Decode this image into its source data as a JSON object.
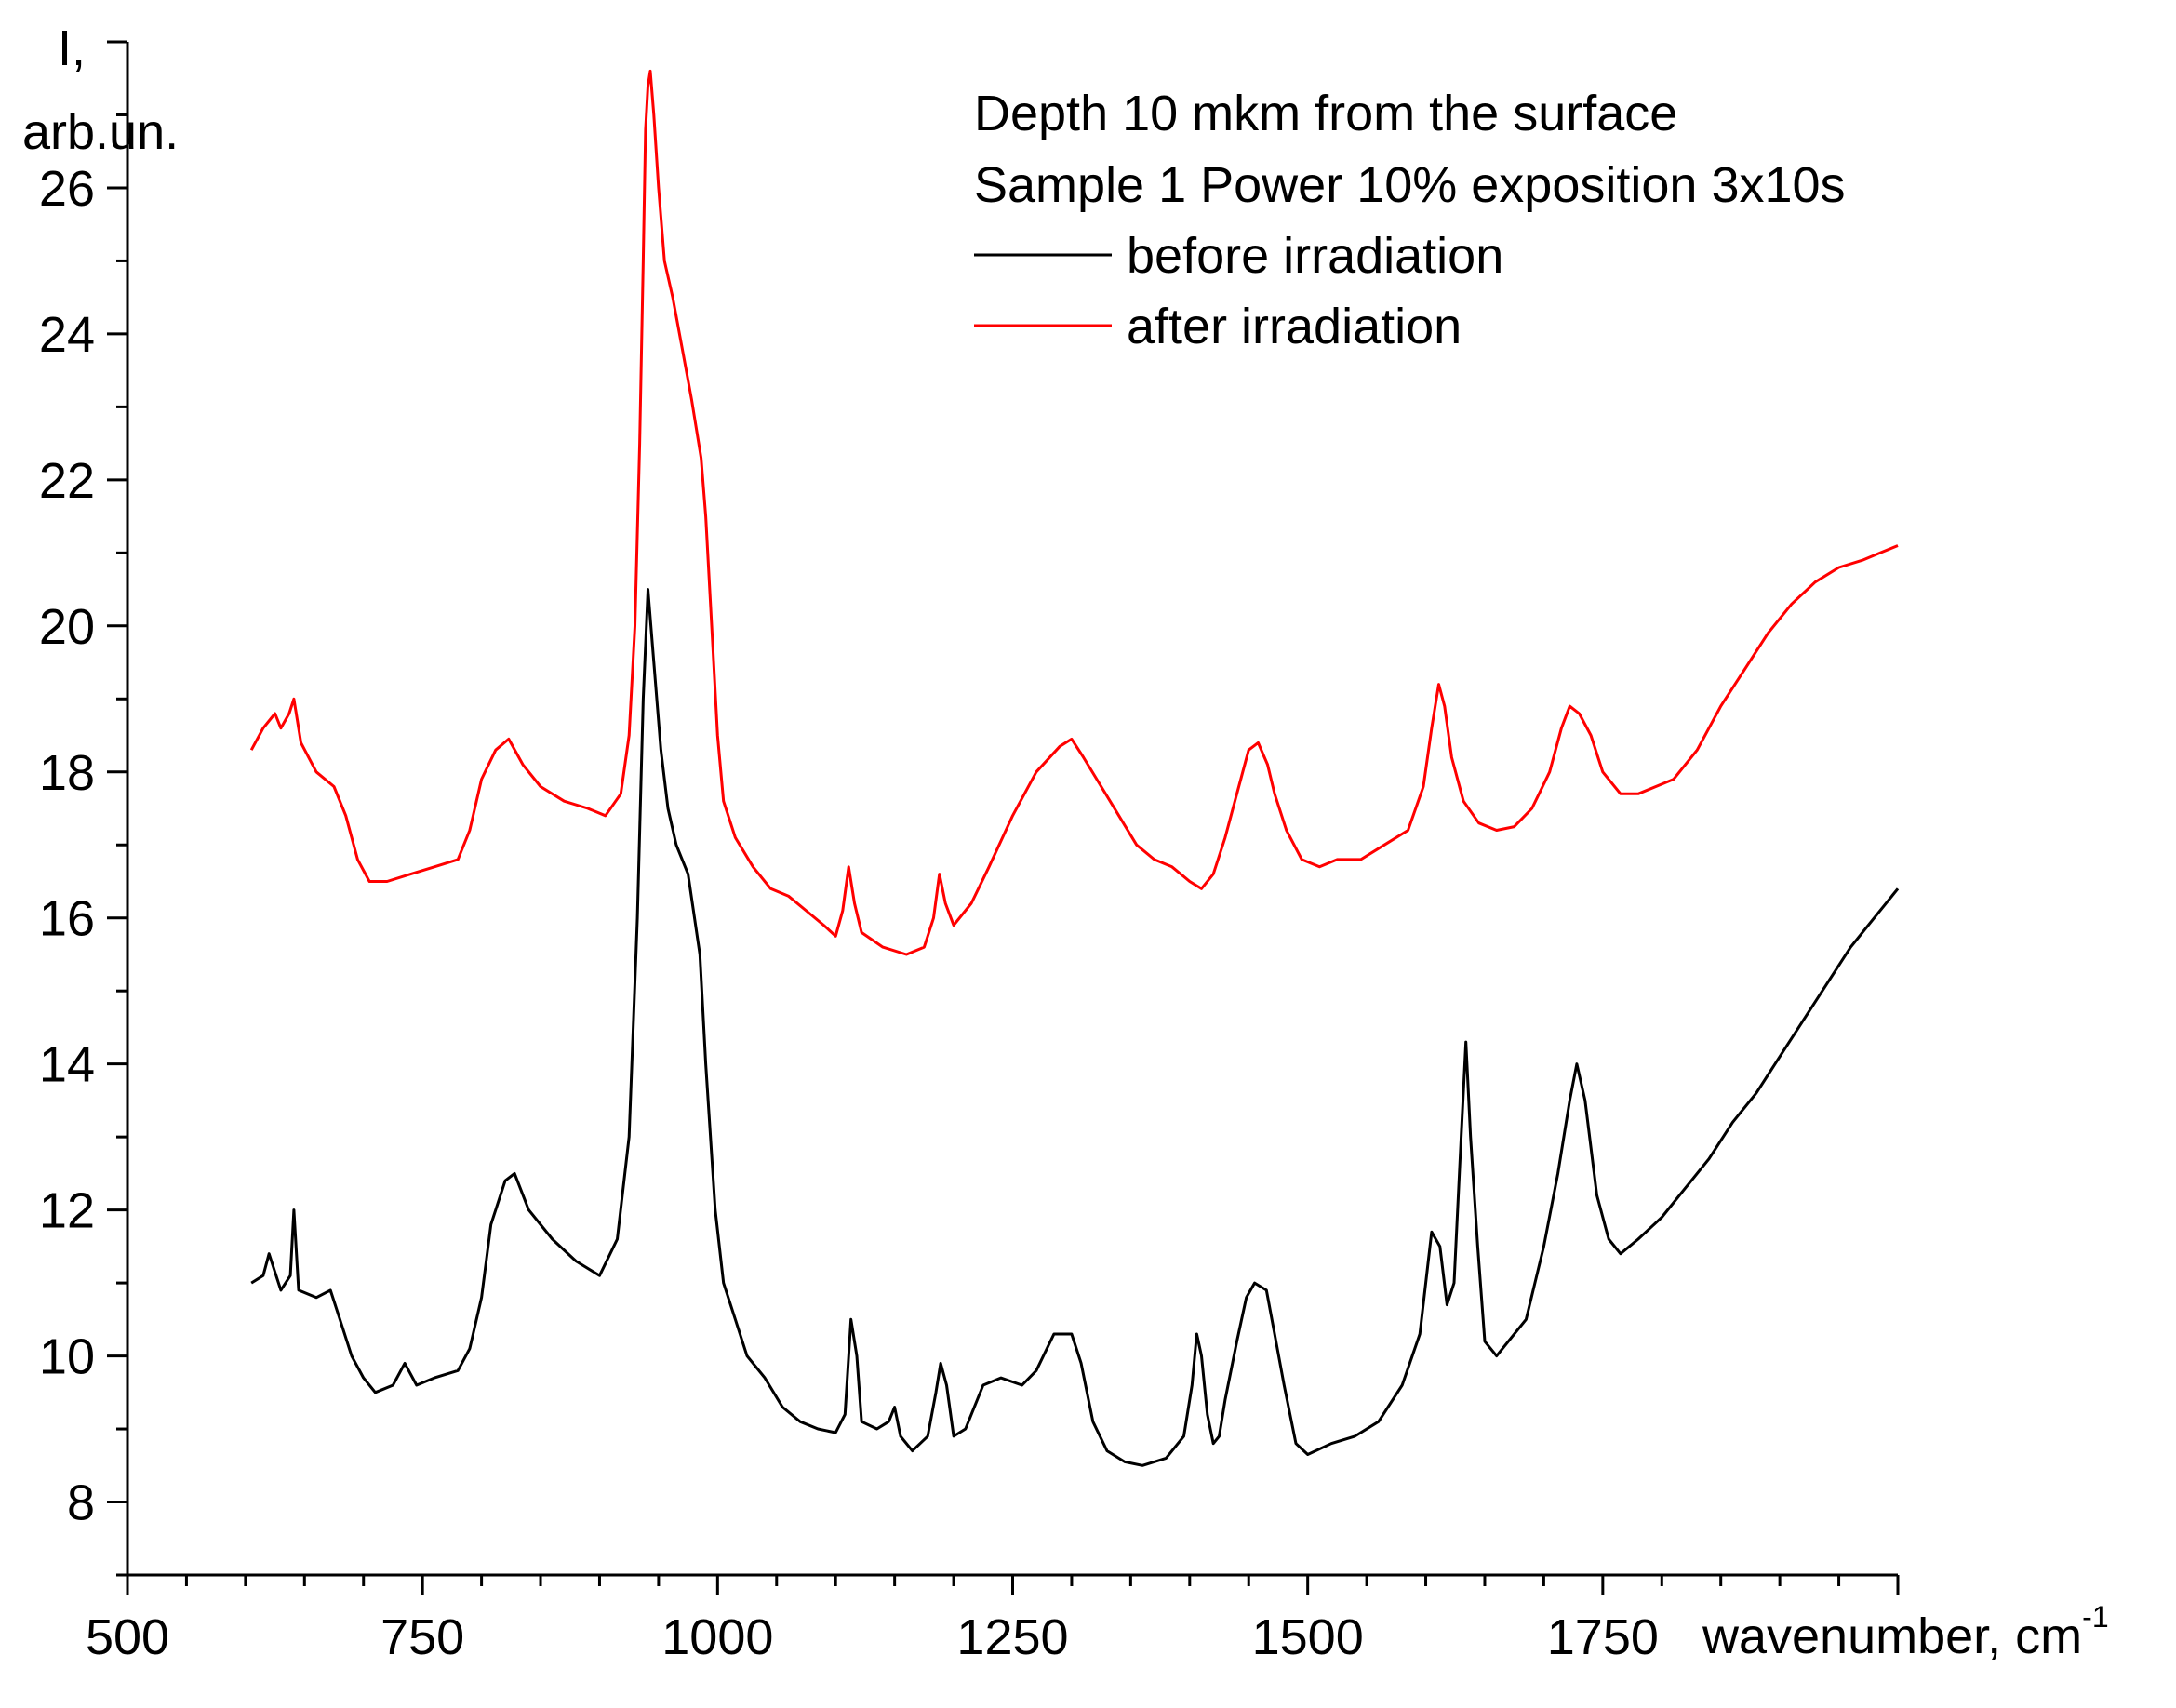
{
  "chart_data": {
    "type": "line",
    "title_lines": [
      "Depth 10 mkm from the surface",
      "Sample 1 Power 10% exposition 3x10s"
    ],
    "xlabel": "wavenumber, cm",
    "xlabel_superscript": "-1",
    "ylabel_lines": [
      "I,",
      "arb.un."
    ],
    "xlim": [
      500,
      2000
    ],
    "ylim": [
      7,
      28
    ],
    "xticks": [
      500,
      750,
      1000,
      1250,
      1500,
      1750
    ],
    "yticks": [
      8,
      10,
      12,
      14,
      16,
      18,
      20,
      22,
      24,
      26
    ],
    "colors": {
      "axis": "#000000",
      "before": "#000000",
      "after": "#ff0000"
    },
    "series": [
      {
        "name": "before irradiation",
        "color": "#000000",
        "points": [
          [
            605,
            11.0
          ],
          [
            615,
            11.1
          ],
          [
            620,
            11.4
          ],
          [
            630,
            10.9
          ],
          [
            638,
            11.1
          ],
          [
            641,
            12.0
          ],
          [
            645,
            10.9
          ],
          [
            660,
            10.8
          ],
          [
            672,
            10.9
          ],
          [
            680,
            10.5
          ],
          [
            690,
            10.0
          ],
          [
            700,
            9.7
          ],
          [
            710,
            9.5
          ],
          [
            725,
            9.6
          ],
          [
            735,
            9.9
          ],
          [
            745,
            9.6
          ],
          [
            760,
            9.7
          ],
          [
            780,
            9.8
          ],
          [
            790,
            10.1
          ],
          [
            800,
            10.8
          ],
          [
            808,
            11.8
          ],
          [
            820,
            12.4
          ],
          [
            828,
            12.5
          ],
          [
            840,
            12.0
          ],
          [
            860,
            11.6
          ],
          [
            880,
            11.3
          ],
          [
            900,
            11.1
          ],
          [
            915,
            11.6
          ],
          [
            925,
            13.0
          ],
          [
            932,
            16.0
          ],
          [
            937,
            19.0
          ],
          [
            941,
            20.5
          ],
          [
            946,
            19.5
          ],
          [
            952,
            18.3
          ],
          [
            958,
            17.5
          ],
          [
            965,
            17.0
          ],
          [
            975,
            16.6
          ],
          [
            985,
            15.5
          ],
          [
            990,
            14.0
          ],
          [
            998,
            12.0
          ],
          [
            1005,
            11.0
          ],
          [
            1015,
            10.5
          ],
          [
            1025,
            10.0
          ],
          [
            1040,
            9.7
          ],
          [
            1055,
            9.3
          ],
          [
            1070,
            9.1
          ],
          [
            1085,
            9.0
          ],
          [
            1100,
            8.95
          ],
          [
            1108,
            9.2
          ],
          [
            1113,
            10.5
          ],
          [
            1118,
            10.0
          ],
          [
            1122,
            9.1
          ],
          [
            1135,
            9.0
          ],
          [
            1145,
            9.1
          ],
          [
            1150,
            9.3
          ],
          [
            1155,
            8.9
          ],
          [
            1165,
            8.7
          ],
          [
            1178,
            8.9
          ],
          [
            1185,
            9.5
          ],
          [
            1189,
            9.9
          ],
          [
            1194,
            9.6
          ],
          [
            1200,
            8.9
          ],
          [
            1210,
            9.0
          ],
          [
            1225,
            9.6
          ],
          [
            1240,
            9.7
          ],
          [
            1258,
            9.6
          ],
          [
            1270,
            9.8
          ],
          [
            1285,
            10.3
          ],
          [
            1300,
            10.3
          ],
          [
            1308,
            9.9
          ],
          [
            1318,
            9.1
          ],
          [
            1330,
            8.7
          ],
          [
            1345,
            8.55
          ],
          [
            1360,
            8.5
          ],
          [
            1380,
            8.6
          ],
          [
            1395,
            8.9
          ],
          [
            1402,
            9.6
          ],
          [
            1406,
            10.3
          ],
          [
            1410,
            10.0
          ],
          [
            1415,
            9.2
          ],
          [
            1420,
            8.8
          ],
          [
            1425,
            8.9
          ],
          [
            1430,
            9.4
          ],
          [
            1440,
            10.2
          ],
          [
            1448,
            10.8
          ],
          [
            1455,
            11.0
          ],
          [
            1465,
            10.9
          ],
          [
            1472,
            10.3
          ],
          [
            1480,
            9.6
          ],
          [
            1490,
            8.8
          ],
          [
            1500,
            8.65
          ],
          [
            1520,
            8.8
          ],
          [
            1540,
            8.9
          ],
          [
            1560,
            9.1
          ],
          [
            1580,
            9.6
          ],
          [
            1595,
            10.3
          ],
          [
            1605,
            11.7
          ],
          [
            1612,
            11.5
          ],
          [
            1618,
            10.7
          ],
          [
            1624,
            11.0
          ],
          [
            1630,
            13.0
          ],
          [
            1634,
            14.3
          ],
          [
            1638,
            13.0
          ],
          [
            1644,
            11.5
          ],
          [
            1650,
            10.2
          ],
          [
            1660,
            10.0
          ],
          [
            1670,
            10.2
          ],
          [
            1685,
            10.5
          ],
          [
            1700,
            11.5
          ],
          [
            1712,
            12.5
          ],
          [
            1722,
            13.5
          ],
          [
            1728,
            14.0
          ],
          [
            1735,
            13.5
          ],
          [
            1745,
            12.2
          ],
          [
            1755,
            11.6
          ],
          [
            1765,
            11.4
          ],
          [
            1780,
            11.6
          ],
          [
            1800,
            11.9
          ],
          [
            1820,
            12.3
          ],
          [
            1840,
            12.7
          ],
          [
            1860,
            13.2
          ],
          [
            1880,
            13.6
          ],
          [
            1900,
            14.1
          ],
          [
            1920,
            14.6
          ],
          [
            1940,
            15.1
          ],
          [
            1960,
            15.6
          ],
          [
            1980,
            16.0
          ],
          [
            2000,
            16.4
          ]
        ]
      },
      {
        "name": "after irradiation",
        "color": "#ff0000",
        "points": [
          [
            605,
            18.3
          ],
          [
            615,
            18.6
          ],
          [
            625,
            18.8
          ],
          [
            630,
            18.6
          ],
          [
            637,
            18.8
          ],
          [
            641,
            19.0
          ],
          [
            647,
            18.4
          ],
          [
            660,
            18.0
          ],
          [
            675,
            17.8
          ],
          [
            685,
            17.4
          ],
          [
            695,
            16.8
          ],
          [
            705,
            16.5
          ],
          [
            720,
            16.5
          ],
          [
            740,
            16.6
          ],
          [
            760,
            16.7
          ],
          [
            780,
            16.8
          ],
          [
            790,
            17.2
          ],
          [
            800,
            17.9
          ],
          [
            812,
            18.3
          ],
          [
            823,
            18.45
          ],
          [
            835,
            18.1
          ],
          [
            850,
            17.8
          ],
          [
            870,
            17.6
          ],
          [
            890,
            17.5
          ],
          [
            905,
            17.4
          ],
          [
            918,
            17.7
          ],
          [
            925,
            18.5
          ],
          [
            930,
            20.0
          ],
          [
            934,
            22.5
          ],
          [
            937,
            25.0
          ],
          [
            939,
            26.8
          ],
          [
            941,
            27.4
          ],
          [
            943,
            27.6
          ],
          [
            946,
            27.0
          ],
          [
            950,
            26.0
          ],
          [
            955,
            25.0
          ],
          [
            962,
            24.5
          ],
          [
            970,
            23.8
          ],
          [
            978,
            23.1
          ],
          [
            986,
            22.3
          ],
          [
            990,
            21.5
          ],
          [
            995,
            20.0
          ],
          [
            1000,
            18.5
          ],
          [
            1005,
            17.6
          ],
          [
            1015,
            17.1
          ],
          [
            1030,
            16.7
          ],
          [
            1045,
            16.4
          ],
          [
            1060,
            16.3
          ],
          [
            1075,
            16.1
          ],
          [
            1090,
            15.9
          ],
          [
            1100,
            15.75
          ],
          [
            1106,
            16.1
          ],
          [
            1111,
            16.7
          ],
          [
            1116,
            16.2
          ],
          [
            1122,
            15.8
          ],
          [
            1140,
            15.6
          ],
          [
            1160,
            15.5
          ],
          [
            1175,
            15.6
          ],
          [
            1183,
            16.0
          ],
          [
            1188,
            16.6
          ],
          [
            1193,
            16.2
          ],
          [
            1200,
            15.9
          ],
          [
            1215,
            16.2
          ],
          [
            1230,
            16.7
          ],
          [
            1250,
            17.4
          ],
          [
            1270,
            18.0
          ],
          [
            1290,
            18.35
          ],
          [
            1300,
            18.45
          ],
          [
            1310,
            18.2
          ],
          [
            1325,
            17.8
          ],
          [
            1340,
            17.4
          ],
          [
            1355,
            17.0
          ],
          [
            1370,
            16.8
          ],
          [
            1385,
            16.7
          ],
          [
            1400,
            16.5
          ],
          [
            1410,
            16.4
          ],
          [
            1420,
            16.6
          ],
          [
            1430,
            17.1
          ],
          [
            1440,
            17.7
          ],
          [
            1450,
            18.3
          ],
          [
            1458,
            18.4
          ],
          [
            1466,
            18.1
          ],
          [
            1472,
            17.7
          ],
          [
            1482,
            17.2
          ],
          [
            1495,
            16.8
          ],
          [
            1510,
            16.7
          ],
          [
            1525,
            16.8
          ],
          [
            1545,
            16.8
          ],
          [
            1565,
            17.0
          ],
          [
            1585,
            17.2
          ],
          [
            1598,
            17.8
          ],
          [
            1605,
            18.6
          ],
          [
            1611,
            19.2
          ],
          [
            1616,
            18.9
          ],
          [
            1622,
            18.2
          ],
          [
            1632,
            17.6
          ],
          [
            1645,
            17.3
          ],
          [
            1660,
            17.2
          ],
          [
            1675,
            17.25
          ],
          [
            1690,
            17.5
          ],
          [
            1705,
            18.0
          ],
          [
            1715,
            18.6
          ],
          [
            1722,
            18.9
          ],
          [
            1730,
            18.8
          ],
          [
            1740,
            18.5
          ],
          [
            1750,
            18.0
          ],
          [
            1765,
            17.7
          ],
          [
            1780,
            17.7
          ],
          [
            1795,
            17.8
          ],
          [
            1810,
            17.9
          ],
          [
            1830,
            18.3
          ],
          [
            1850,
            18.9
          ],
          [
            1870,
            19.4
          ],
          [
            1890,
            19.9
          ],
          [
            1910,
            20.3
          ],
          [
            1930,
            20.6
          ],
          [
            1950,
            20.8
          ],
          [
            1970,
            20.9
          ],
          [
            1985,
            21.0
          ],
          [
            2000,
            21.1
          ]
        ]
      }
    ]
  }
}
